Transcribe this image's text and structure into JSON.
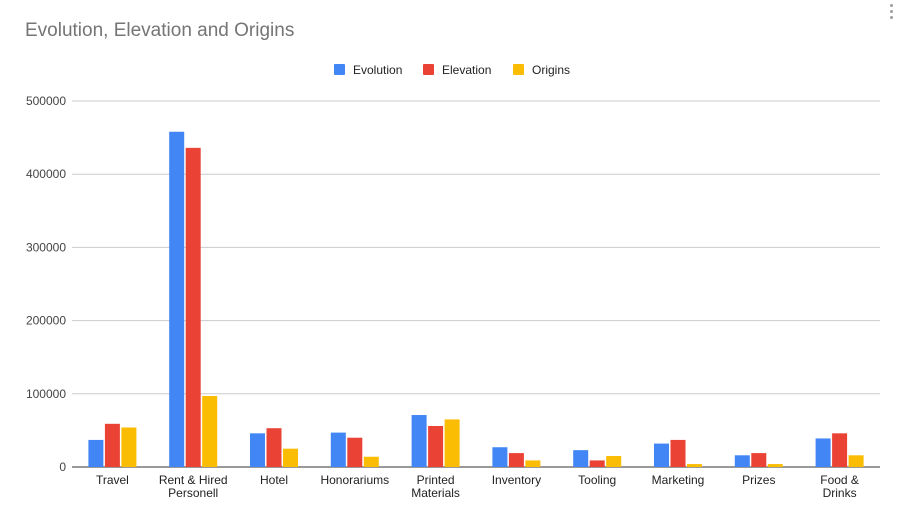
{
  "chart_data": {
    "type": "bar",
    "title": "Evolution, Elevation and Origins",
    "xlabel": "",
    "ylabel": "",
    "ylim": [
      0,
      500000
    ],
    "yticks": [
      0,
      100000,
      200000,
      300000,
      400000,
      500000
    ],
    "grid": true,
    "legend_position": "top-center",
    "categories": [
      [
        "Travel"
      ],
      [
        "Rent & Hired",
        "Personell"
      ],
      [
        "Hotel"
      ],
      [
        "Honorariums"
      ],
      [
        "Printed",
        "Materials"
      ],
      [
        "Inventory"
      ],
      [
        "Tooling"
      ],
      [
        "Marketing"
      ],
      [
        "Prizes"
      ],
      [
        "Food &",
        "Drinks"
      ]
    ],
    "series": [
      {
        "name": "Evolution",
        "color": "#4285f4",
        "values": [
          37000,
          458000,
          46000,
          47000,
          71000,
          27000,
          23000,
          32000,
          16000,
          39000
        ]
      },
      {
        "name": "Elevation",
        "color": "#ea4335",
        "values": [
          59000,
          436000,
          53000,
          40000,
          56000,
          19000,
          9000,
          37000,
          19000,
          46000
        ]
      },
      {
        "name": "Origins",
        "color": "#fbbc04",
        "values": [
          54000,
          97000,
          25000,
          14000,
          65000,
          9000,
          15000,
          4000,
          4000,
          16000
        ]
      }
    ]
  }
}
